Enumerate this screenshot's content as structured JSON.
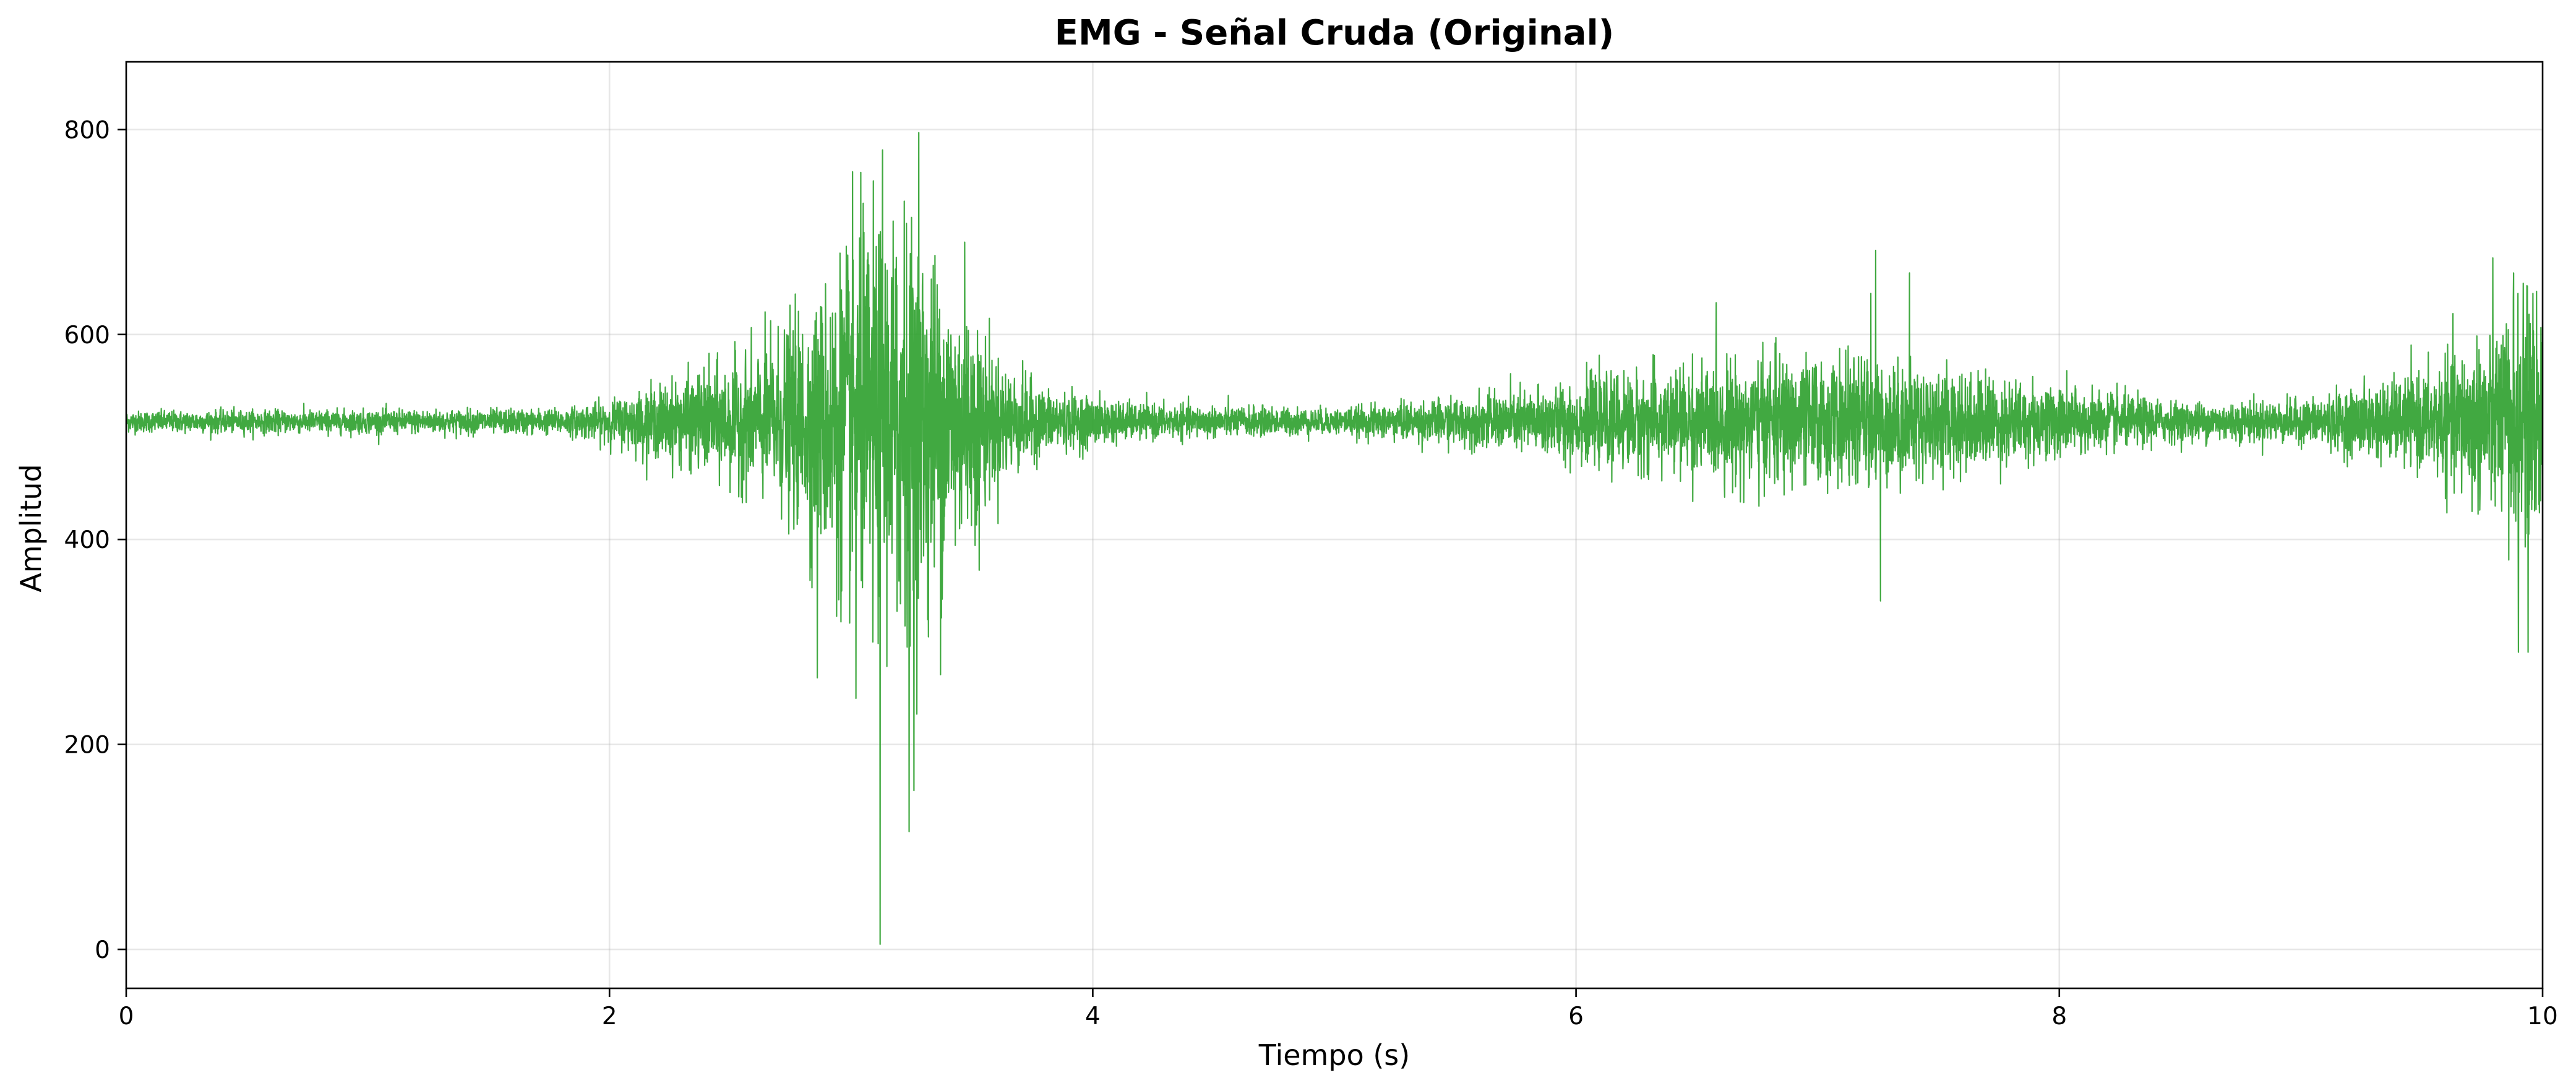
{
  "chart_data": {
    "type": "line",
    "title": "EMG - Señal Cruda (Original)",
    "xlabel": "Tiempo (s)",
    "ylabel": "Amplitud",
    "xlim": [
      0,
      10
    ],
    "ylim": [
      -38,
      866
    ],
    "x_ticks": [
      "0",
      "2",
      "4",
      "6",
      "8",
      "10"
    ],
    "y_ticks": [
      "0",
      "200",
      "400",
      "600",
      "800"
    ],
    "grid": true,
    "line_color": "#2ca02c",
    "baseline": 515,
    "sampling_rate_hz": 1000,
    "duration_s": 10,
    "noise_envelope": [
      {
        "t": 0.0,
        "amp": 5
      },
      {
        "t": 1.8,
        "amp": 6
      },
      {
        "t": 2.0,
        "amp": 10
      },
      {
        "t": 2.3,
        "amp": 20
      },
      {
        "t": 2.6,
        "amp": 32
      },
      {
        "t": 2.85,
        "amp": 55
      },
      {
        "t": 3.0,
        "amp": 85
      },
      {
        "t": 3.2,
        "amp": 95
      },
      {
        "t": 3.4,
        "amp": 70
      },
      {
        "t": 3.6,
        "amp": 30
      },
      {
        "t": 3.8,
        "amp": 15
      },
      {
        "t": 4.2,
        "amp": 8
      },
      {
        "t": 5.0,
        "amp": 6
      },
      {
        "t": 5.6,
        "amp": 12
      },
      {
        "t": 6.2,
        "amp": 22
      },
      {
        "t": 6.8,
        "amp": 30
      },
      {
        "t": 7.3,
        "amp": 28
      },
      {
        "t": 7.8,
        "amp": 20
      },
      {
        "t": 8.5,
        "amp": 9
      },
      {
        "t": 9.0,
        "amp": 10
      },
      {
        "t": 9.5,
        "amp": 22
      },
      {
        "t": 9.8,
        "amp": 45
      },
      {
        "t": 10.0,
        "amp": 60
      }
    ],
    "spikes": [
      {
        "x": 2.83,
        "y": 360
      },
      {
        "x": 2.86,
        "y": 265
      },
      {
        "x": 2.94,
        "y": 325
      },
      {
        "x": 3.02,
        "y": 245
      },
      {
        "x": 3.05,
        "y": 728
      },
      {
        "x": 3.09,
        "y": 300
      },
      {
        "x": 3.12,
        "y": 5
      },
      {
        "x": 3.13,
        "y": 780
      },
      {
        "x": 3.19,
        "y": 330
      },
      {
        "x": 3.22,
        "y": 730
      },
      {
        "x": 3.24,
        "y": 115
      },
      {
        "x": 3.26,
        "y": 155
      },
      {
        "x": 3.28,
        "y": 797
      },
      {
        "x": 3.32,
        "y": 305
      },
      {
        "x": 3.37,
        "y": 268
      },
      {
        "x": 3.47,
        "y": 690
      },
      {
        "x": 3.53,
        "y": 370
      },
      {
        "x": 7.22,
        "y": 640
      },
      {
        "x": 7.24,
        "y": 682
      },
      {
        "x": 7.26,
        "y": 340
      },
      {
        "x": 7.38,
        "y": 660
      },
      {
        "x": 9.86,
        "y": 380
      },
      {
        "x": 9.88,
        "y": 660
      },
      {
        "x": 9.9,
        "y": 290
      },
      {
        "x": 9.92,
        "y": 650
      },
      {
        "x": 9.94,
        "y": 290
      },
      {
        "x": 9.96,
        "y": 640
      }
    ]
  }
}
